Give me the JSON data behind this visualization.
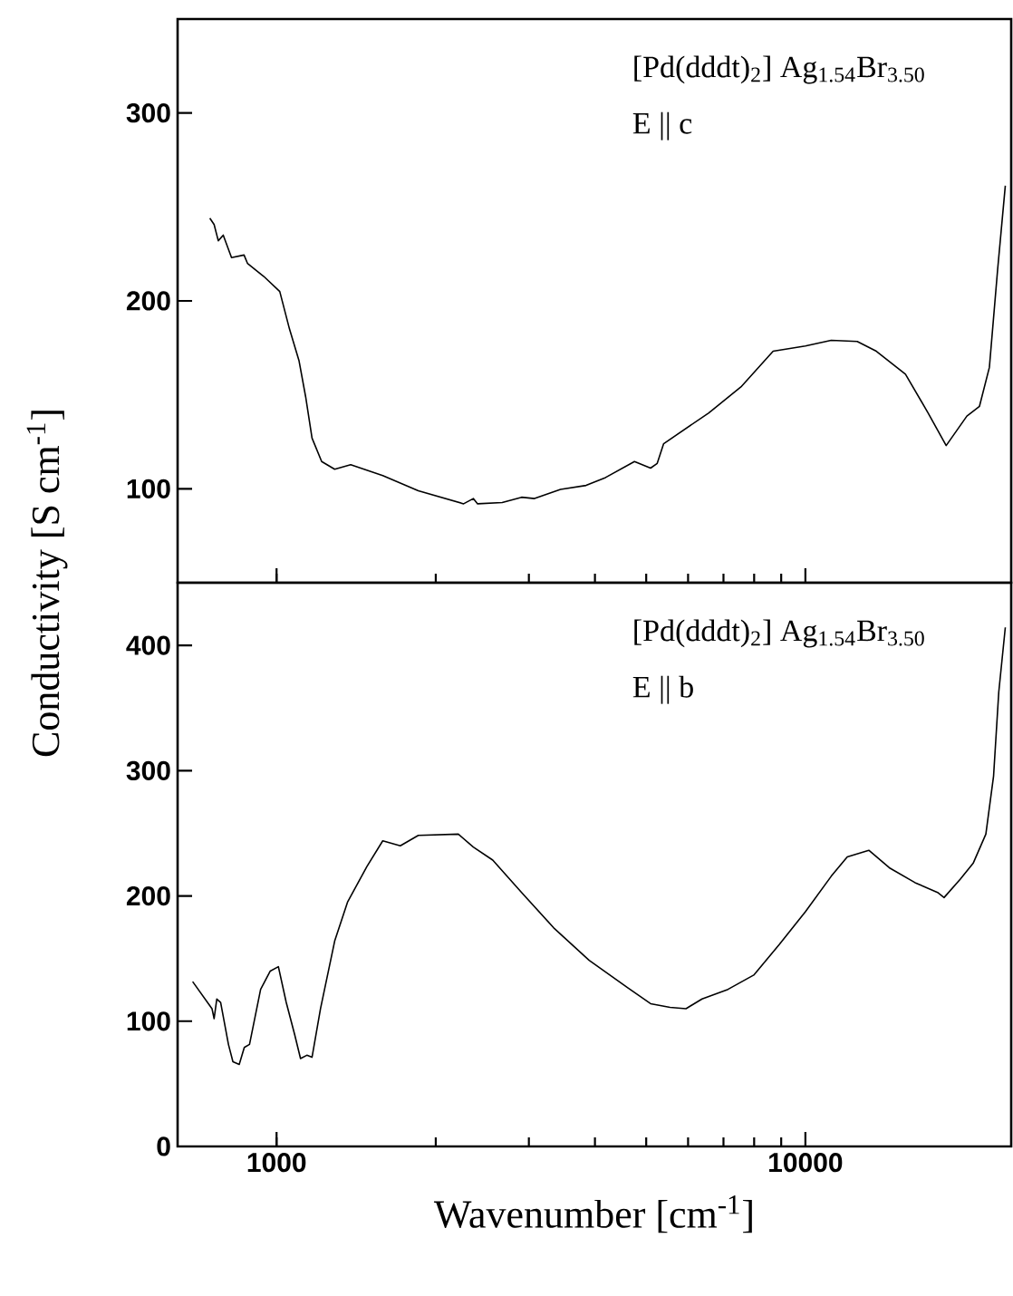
{
  "chart_data": [
    {
      "type": "line",
      "ylabel": "Conductivity [S cm$^{-1}$]",
      "log": "x",
      "tick_labels": "y",
      "color": "#000000",
      "xlim": [
        650,
        24500
      ],
      "ylim": [
        50,
        350
      ],
      "xticks": [
        1000,
        10000
      ],
      "yticks": [
        100,
        200,
        300
      ],
      "annotations": [
        "[Pd(dddt)$_{2}$] Ag$_{1.54}$Br$_{3.50}$",
        "E || c"
      ],
      "x": [
        748,
        762,
        776,
        793,
        822,
        868,
        881,
        946,
        1014,
        1058,
        1103,
        1135,
        1167,
        1217,
        1288,
        1381,
        1588,
        1854,
        2258,
        2355,
        2400,
        2671,
        2906,
        3075,
        3443,
        3850,
        4189,
        4751,
        5096,
        5245,
        5395,
        6567,
        7553,
        8690,
        10000,
        11190,
        12530,
        13620,
        15460,
        17060,
        18460,
        20200,
        21340,
        22280,
        23090,
        23880
      ],
      "values": [
        244,
        240.6,
        232,
        235,
        223,
        224.4,
        220,
        213,
        205,
        185,
        168,
        149,
        127,
        114.5,
        110.4,
        112.8,
        107,
        99,
        92,
        94.8,
        92,
        92.7,
        95.5,
        94.8,
        99.7,
        101.8,
        106,
        114.5,
        111,
        113.5,
        124,
        140.4,
        154.2,
        173.2,
        176,
        179,
        178.4,
        173.2,
        161,
        140.4,
        123,
        138.7,
        143.9,
        164.6,
        216.4,
        261.3
      ]
    },
    {
      "type": "line",
      "xlabel": "Wavenumber [cm$^{-1}$]",
      "log": "x",
      "color": "#000000",
      "xlim": [
        650,
        24500
      ],
      "ylim": [
        0,
        450
      ],
      "xticks": [
        1000,
        10000
      ],
      "yticks": [
        0,
        100,
        200,
        300,
        400
      ],
      "annotations": [
        "[Pd(dddt)$_{2}$] Ag$_{1.54}$Br$_{3.50}$",
        "E || b"
      ],
      "x": [
        694,
        755,
        762,
        771,
        784,
        811,
        827,
        850,
        869,
        889,
        933,
        973,
        1008,
        1043,
        1082,
        1110,
        1141,
        1167,
        1211,
        1288,
        1362,
        1482,
        1588,
        1714,
        1854,
        2207,
        2355,
        2563,
        2906,
        3343,
        3901,
        4620,
        5096,
        5546,
        5946,
        6377,
        7139,
        7987,
        8937,
        10000,
        11190,
        12000,
        13180,
        14410,
        16120,
        17780,
        18290,
        19620,
        20760,
        21940,
        22690,
        23210,
        23880
      ],
      "values": [
        131.6,
        110,
        102,
        117.7,
        115,
        81.5,
        67.6,
        65.5,
        79,
        81.5,
        125.4,
        140,
        143.5,
        115,
        89.3,
        70.2,
        72.8,
        71.2,
        110,
        164,
        195,
        223.5,
        244,
        240,
        248.3,
        249.3,
        239,
        228.6,
        202.8,
        174.5,
        148.6,
        126.5,
        114,
        111,
        110,
        117.7,
        125.4,
        136.8,
        161.5,
        187.4,
        215.7,
        231.2,
        236.4,
        222.5,
        210.6,
        202.8,
        198.7,
        213.2,
        226,
        249.3,
        295.7,
        362.8,
        414.4
      ]
    }
  ]
}
